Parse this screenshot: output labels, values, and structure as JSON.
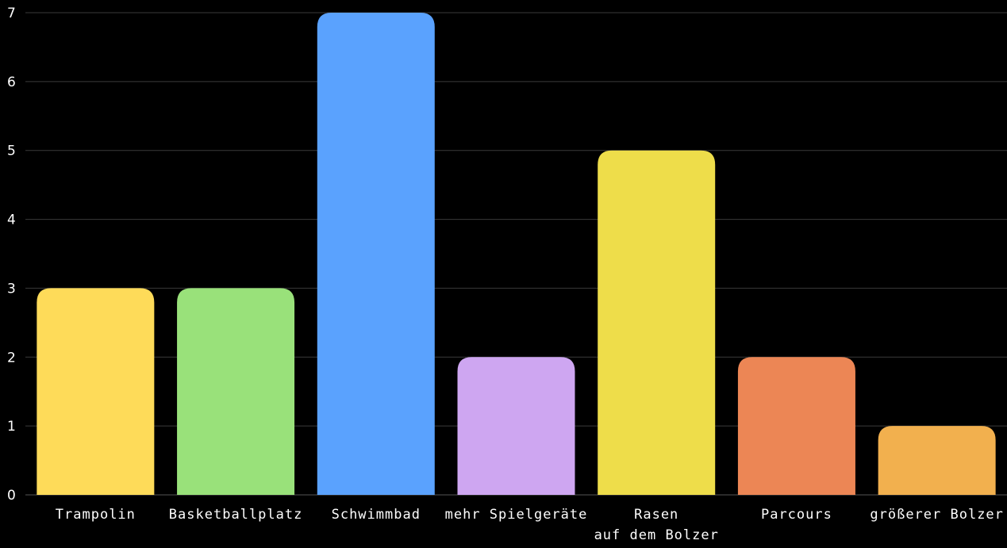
{
  "chart_data": {
    "type": "bar",
    "categories": [
      [
        "Trampolin"
      ],
      [
        "Basketballplatz"
      ],
      [
        "Schwimmbad"
      ],
      [
        "mehr Spielgeräte"
      ],
      [
        "Rasen",
        "auf dem Bolzer"
      ],
      [
        "Parcours"
      ],
      [
        "größerer Bolzer"
      ]
    ],
    "values": [
      3,
      3,
      7,
      2,
      5,
      2,
      1
    ],
    "colors": [
      "#fedb59",
      "#99e17a",
      "#5aa2fe",
      "#cea6f1",
      "#eedd4a",
      "#ec8655",
      "#f2b04e"
    ],
    "ylim": [
      0,
      7
    ],
    "yticks": [
      0,
      1,
      2,
      3,
      4,
      5,
      6,
      7
    ],
    "grid": true,
    "legend": "none"
  }
}
